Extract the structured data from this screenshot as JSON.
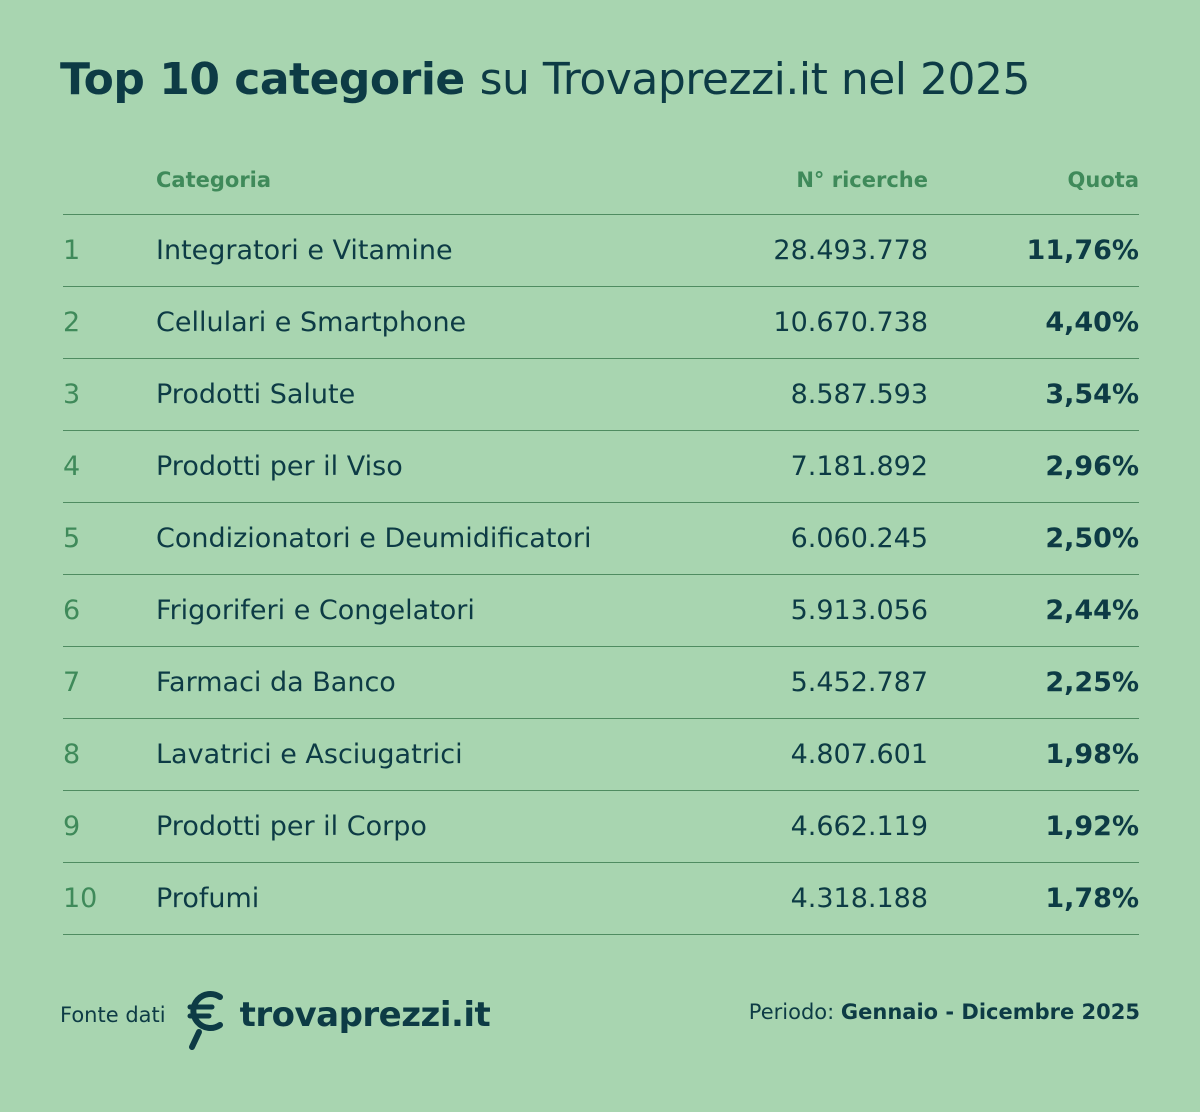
{
  "title": {
    "bold": "Top 10 categorie",
    "light": "su Trovaprezzi.it nel 2025"
  },
  "chart_data": {
    "type": "table",
    "columns": [
      "",
      "Categoria",
      "N° ricerche",
      "Quota"
    ],
    "rows": [
      {
        "rank": "1",
        "category": "Integratori e Vitamine",
        "searches": "28.493.778",
        "share": "11,76%"
      },
      {
        "rank": "2",
        "category": "Cellulari e Smartphone",
        "searches": "10.670.738",
        "share": "4,40%"
      },
      {
        "rank": "3",
        "category": "Prodotti Salute",
        "searches": "8.587.593",
        "share": "3,54%"
      },
      {
        "rank": "4",
        "category": "Prodotti per il Viso",
        "searches": "7.181.892",
        "share": "2,96%"
      },
      {
        "rank": "5",
        "category": "Condizionatori e Deumidificatori",
        "searches": "6.060.245",
        "share": "2,50%"
      },
      {
        "rank": "6",
        "category": "Frigoriferi e Congelatori",
        "searches": "5.913.056",
        "share": "2,44%"
      },
      {
        "rank": "7",
        "category": "Farmaci da Banco",
        "searches": "5.452.787",
        "share": "2,25%"
      },
      {
        "rank": "8",
        "category": "Lavatrici e Asciugatrici",
        "searches": "4.807.601",
        "share": "1,98%"
      },
      {
        "rank": "9",
        "category": "Prodotti per il Corpo",
        "searches": "4.662.119",
        "share": "1,92%"
      },
      {
        "rank": "10",
        "category": "Profumi",
        "searches": "4.318.188",
        "share": "1,78%"
      }
    ]
  },
  "footer": {
    "source_label": "Fonte dati",
    "brand": "trovaprezzi.it",
    "logo_icon": "trovaprezzi-magnifier-euro-icon",
    "period_label": "Periodo:",
    "period_value": "Gennaio - Dicembre 2025"
  },
  "colors": {
    "background": "#a8d5b0",
    "text_dark": "#0d3b45",
    "accent_green": "#3f8a5a",
    "divider": "#4f8c61"
  }
}
